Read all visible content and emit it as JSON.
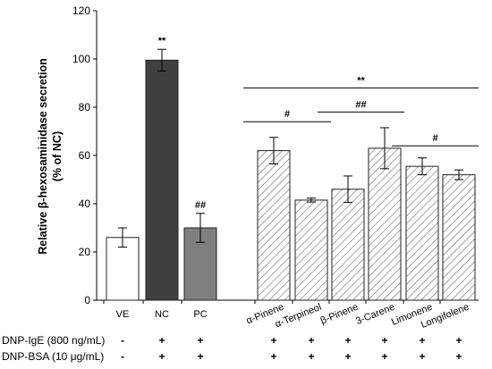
{
  "chart_data": {
    "type": "bar",
    "ylabel_line1": "Relative β-hexosaminidase secretion",
    "ylabel_line2": "(% of NC)",
    "ylim": [
      0,
      120
    ],
    "yticks": [
      0,
      20,
      40,
      60,
      80,
      100,
      120
    ],
    "categories": [
      "VE",
      "NC",
      "PC",
      "α-Pinene",
      "α-Terpineol",
      "β-Pinene",
      "3-Carene",
      "Limonene",
      "Longifolene"
    ],
    "values": [
      26,
      99.5,
      30,
      62,
      41.5,
      46,
      63,
      55.5,
      52
    ],
    "errors": [
      4,
      4.5,
      6,
      5.5,
      0.8,
      5.5,
      8.5,
      3.5,
      2
    ],
    "fills": [
      "#ffffff",
      "#404040",
      "#7f7f7f",
      "hatch",
      "hatch",
      "hatch",
      "hatch",
      "hatch",
      "hatch"
    ],
    "bar_labels": [
      "",
      "**",
      "##",
      "",
      "",
      "",
      "",
      "",
      ""
    ],
    "annotations": [
      {
        "from": 3,
        "to": 8,
        "y": 88,
        "label": "**"
      },
      {
        "from": 3,
        "to": 4,
        "y": 74,
        "label": "#"
      },
      {
        "from": 5,
        "to": 6,
        "y": 78,
        "label": "##"
      },
      {
        "from": 7,
        "to": 8,
        "y": 64,
        "label": "#"
      }
    ],
    "treatments": [
      {
        "label": "DNP-IgE (800 ng/mL)",
        "values": [
          "-",
          "+",
          "+",
          "+",
          "+",
          "+",
          "+",
          "+",
          "+"
        ]
      },
      {
        "label": "DNP-BSA (10 μg/mL)",
        "values": [
          "-",
          "+",
          "+",
          "+",
          "+",
          "+",
          "+",
          "+",
          "+"
        ]
      }
    ],
    "colors": {
      "axis": "#000000",
      "dark_bar": "#404040",
      "gray_bar": "#7f7f7f",
      "hatch": "#777777"
    }
  }
}
